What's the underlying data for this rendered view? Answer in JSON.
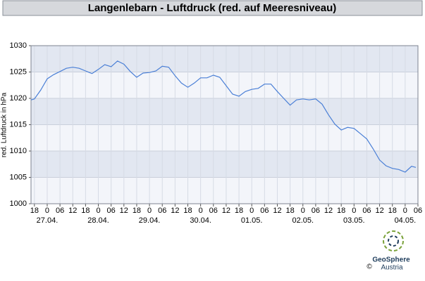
{
  "chart_data": {
    "type": "line",
    "title": "Langenlebarn - Luftdruck (red. auf Meeresniveau)",
    "y_label": "red. Luftdruck in hPa",
    "x": [
      -7.6,
      -6,
      -3,
      0,
      3,
      6,
      9,
      12,
      15,
      18,
      21,
      24,
      27,
      30,
      33,
      36,
      39,
      42,
      45,
      48,
      51,
      54,
      57,
      60,
      63,
      66,
      69,
      72,
      75,
      78,
      81,
      84,
      87,
      90,
      93,
      96,
      99,
      102,
      105,
      108,
      111,
      114,
      117,
      120,
      123,
      126,
      129,
      132,
      135,
      138,
      141,
      144,
      147,
      150,
      153,
      156,
      159,
      162,
      165,
      168,
      171,
      173
    ],
    "series": [
      {
        "name": "Luftdruck",
        "color": "#4a7fd6",
        "values": [
          1019.7,
          1019.9,
          1021.6,
          1023.7,
          1024.5,
          1025.1,
          1025.7,
          1025.9,
          1025.7,
          1025.2,
          1024.7,
          1025.5,
          1026.4,
          1026,
          1027.1,
          1026.5,
          1025.1,
          1024,
          1024.8,
          1024.9,
          1025.2,
          1026.1,
          1025.9,
          1024.3,
          1022.9,
          1022.1,
          1022.9,
          1023.9,
          1023.9,
          1024.4,
          1024,
          1022.4,
          1020.8,
          1020.4,
          1021.3,
          1021.7,
          1021.9,
          1022.7,
          1022.7,
          1021.3,
          1020,
          1018.7,
          1019.7,
          1019.9,
          1019.7,
          1019.9,
          1018.9,
          1016.9,
          1015.1,
          1014,
          1014.5,
          1014.3,
          1013.3,
          1012.3,
          1010.4,
          1008.3,
          1007.2,
          1006.7,
          1006.5,
          1006,
          1007.1,
          1006.9
        ]
      }
    ],
    "xlim": [
      -7.6,
      174
    ],
    "ylim": [
      1000,
      1030
    ],
    "yticks": [
      1000,
      1005,
      1010,
      1015,
      1020,
      1025,
      1030
    ],
    "xticks": [
      {
        "value": -6,
        "label": "18"
      },
      0,
      {
        "value": 6,
        "label": "06"
      },
      {
        "value": 12,
        "label": "12"
      },
      {
        "value": 18,
        "label": "18"
      },
      {
        "value": 24,
        "label": "0"
      },
      {
        "value": 30,
        "label": "06"
      },
      {
        "value": 36,
        "label": "12"
      },
      {
        "value": 42,
        "label": "18"
      },
      {
        "value": 48,
        "label": "0"
      },
      {
        "value": 54,
        "label": "06"
      },
      {
        "value": 60,
        "label": "12"
      },
      {
        "value": 66,
        "label": "18"
      },
      {
        "value": 72,
        "label": "0"
      },
      {
        "value": 78,
        "label": "06"
      },
      {
        "value": 84,
        "label": "12"
      },
      {
        "value": 90,
        "label": "18"
      },
      {
        "value": 96,
        "label": "0"
      },
      {
        "value": 102,
        "label": "06"
      },
      {
        "value": 108,
        "label": "12"
      },
      {
        "value": 114,
        "label": "18"
      },
      {
        "value": 120,
        "label": "0"
      },
      {
        "value": 126,
        "label": "06"
      },
      {
        "value": 132,
        "label": "12"
      },
      {
        "value": 138,
        "label": "18"
      },
      {
        "value": 144,
        "label": "0"
      },
      {
        "value": 150,
        "label": "06"
      },
      {
        "value": 156,
        "label": "12"
      },
      {
        "value": 162,
        "label": "18"
      },
      {
        "value": 168,
        "label": "0"
      },
      {
        "value": 174,
        "label": "06"
      }
    ],
    "date_labels": [
      {
        "value": 0,
        "label": "27.04."
      },
      {
        "value": 24,
        "label": "28.04."
      },
      {
        "value": 48,
        "label": "29.04."
      },
      {
        "value": 72,
        "label": "30.04."
      },
      {
        "value": 96,
        "label": "01.05."
      },
      {
        "value": 120,
        "label": "02.05."
      },
      {
        "value": 144,
        "label": "03.05."
      },
      {
        "value": 168,
        "label": "04.05."
      }
    ],
    "grid": true
  },
  "logo": {
    "name": "GeoSphere",
    "sub": "Austria",
    "copyright": "©"
  }
}
